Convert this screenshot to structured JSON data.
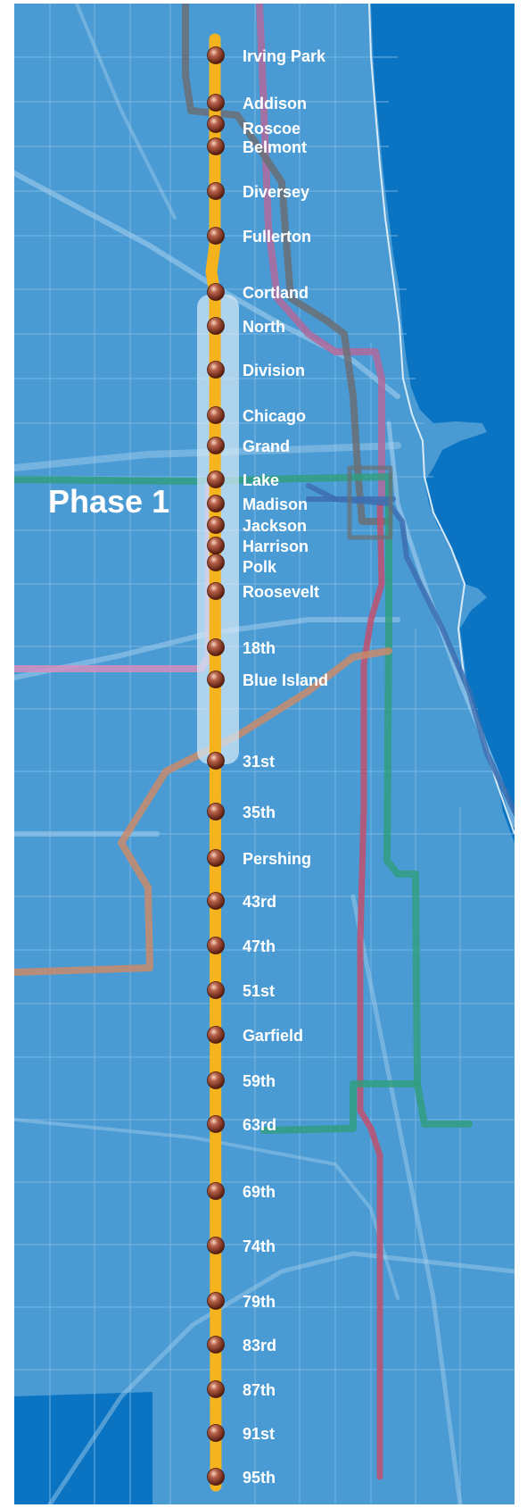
{
  "map": {
    "phase_label": "Phase 1",
    "colors": {
      "water": "#0a73c2",
      "land": "#4a9bd4",
      "street": "#8cc1e6",
      "route": "#f5b41e",
      "phase_band": "#d6e9f6",
      "station": "#8a3a24",
      "label": "#ffffff"
    },
    "stations": [
      "Irving Park",
      "Addison",
      "Roscoe",
      "Belmont",
      "Diversey",
      "Fullerton",
      "Cortland",
      "North",
      "Division",
      "Chicago",
      "Grand",
      "Lake",
      "Madison",
      "Jackson",
      "Harrison",
      "Polk",
      "Roosevelt",
      "18th",
      "Blue Island",
      "31st",
      "35th",
      "Pershing",
      "43rd",
      "47th",
      "51st",
      "Garfield",
      "59th",
      "63rd",
      "69th",
      "74th",
      "79th",
      "83rd",
      "87th",
      "91st",
      "95th"
    ],
    "phase_1_stations": [
      "Cortland",
      "North",
      "Division",
      "Chicago",
      "Grand",
      "Lake",
      "Madison",
      "Jackson",
      "Harrison",
      "Polk",
      "Roosevelt",
      "18th",
      "Blue Island",
      "31st"
    ]
  }
}
